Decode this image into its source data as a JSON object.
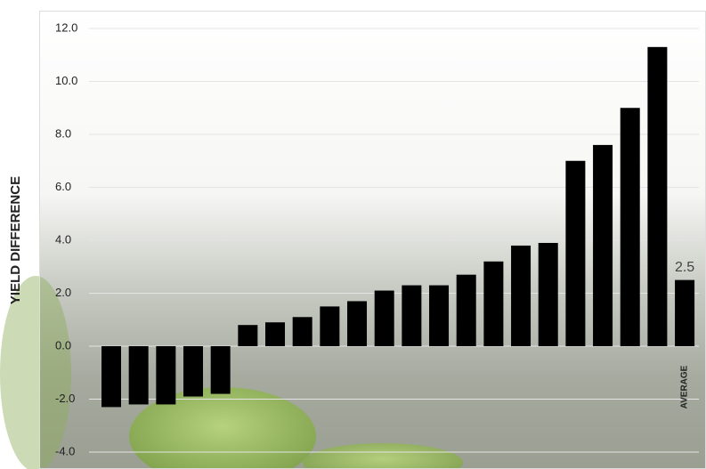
{
  "chart_data": {
    "type": "bar",
    "ylabel": "YIELD DIFFERENCE",
    "categories": [
      null,
      null,
      null,
      null,
      null,
      null,
      null,
      null,
      null,
      null,
      null,
      null,
      null,
      null,
      null,
      null,
      null,
      null,
      null,
      null,
      null,
      "AVERAGE"
    ],
    "values": [
      -2.3,
      -2.2,
      -2.2,
      -1.9,
      -1.8,
      0.8,
      0.9,
      1.1,
      1.5,
      1.7,
      2.1,
      2.3,
      2.3,
      2.7,
      3.2,
      3.8,
      3.9,
      7.0,
      7.6,
      9.0,
      11.3,
      2.5
    ],
    "value_labels": [
      null,
      null,
      null,
      null,
      null,
      null,
      null,
      null,
      null,
      null,
      null,
      null,
      null,
      null,
      null,
      null,
      null,
      null,
      null,
      null,
      null,
      "2.5"
    ],
    "color": "#000000",
    "ylim": [
      -4,
      12
    ],
    "yticks": [
      {
        "value": -4,
        "label": "-4.0"
      },
      {
        "value": -2,
        "label": "-2.0"
      },
      {
        "value": 0,
        "label": "0.0"
      },
      {
        "value": 2,
        "label": "2.0"
      },
      {
        "value": 4,
        "label": "4.0"
      },
      {
        "value": 6,
        "label": "6.0"
      },
      {
        "value": 8,
        "label": "8.0"
      },
      {
        "value": 10,
        "label": "10.0"
      },
      {
        "value": 12,
        "label": "12.0"
      }
    ],
    "grid": true
  }
}
